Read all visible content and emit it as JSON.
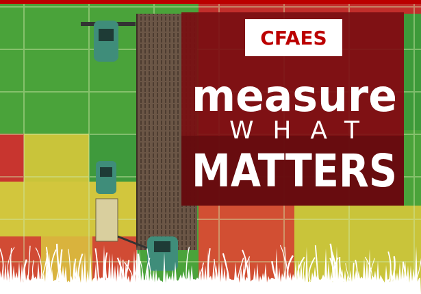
{
  "badge": "CFAES",
  "headline": {
    "line1": "measure",
    "line2": "WHAT",
    "line3": "MATTERS"
  }
}
